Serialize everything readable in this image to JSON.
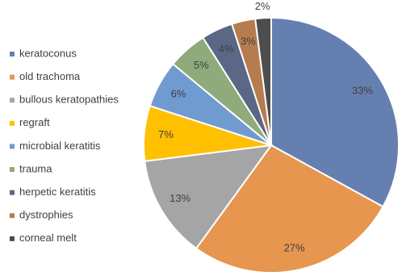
{
  "chart_data": {
    "type": "pie",
    "categories": [
      "keratoconus",
      "old trachoma",
      "bullous keratopathies",
      "regraft",
      "microbial keratitis",
      "trauma",
      "herpetic keratitis",
      "dystrophies",
      "corneal melt"
    ],
    "values": [
      33,
      27,
      13,
      7,
      6,
      5,
      4,
      3,
      2
    ],
    "value_labels": [
      "33%",
      "27%",
      "13%",
      "7%",
      "6%",
      "5%",
      "4%",
      "3%",
      "2%"
    ],
    "colors": [
      "#6580b0",
      "#e6964f",
      "#a5a5a5",
      "#ffc000",
      "#6f9bd1",
      "#8faa7b",
      "#5a6785",
      "#b57d4f",
      "#4d4d4d"
    ],
    "legend": "left"
  }
}
